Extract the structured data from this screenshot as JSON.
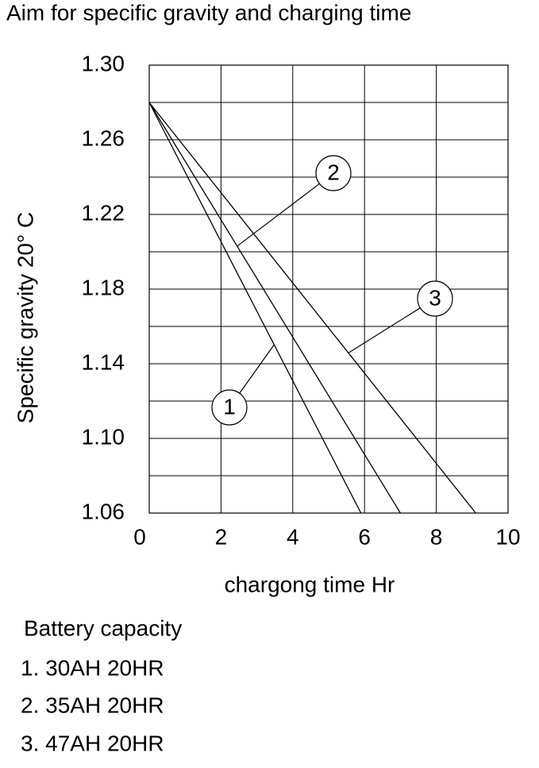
{
  "chart_data": {
    "type": "line",
    "title": "Aim for specific gravity and charging time",
    "x_label": "chargong time Hr",
    "y_label": "Specific gravity 20° C",
    "xlim": [
      0,
      10
    ],
    "xticks": [
      0,
      2,
      4,
      6,
      8,
      10
    ],
    "ylim": [
      1.06,
      1.3
    ],
    "yticks": [
      {
        "value": 1.3,
        "label": "1.30"
      },
      1.26,
      1.22,
      1.18,
      1.14,
      {
        "value": 1.1,
        "label": "1.10"
      },
      1.06
    ],
    "y_minor_ticks": [
      1.28,
      1.24,
      1.2,
      1.16,
      1.12,
      1.08
    ],
    "grid": true,
    "series": [
      {
        "name": "1",
        "color": "#000000",
        "x": [
          0,
          5.9
        ],
        "values": [
          1.28,
          1.06
        ]
      },
      {
        "name": "2",
        "color": "#000000",
        "x": [
          0,
          7.0
        ],
        "values": [
          1.28,
          1.06
        ]
      },
      {
        "name": "3",
        "color": "#000000",
        "x": [
          0,
          9.1
        ],
        "values": [
          1.28,
          1.06
        ]
      }
    ],
    "notes": [
      "Battery capacity",
      "1. 30AH 20HR",
      "2. 35AH 20HR",
      "3. 47AH 20HR"
    ]
  }
}
